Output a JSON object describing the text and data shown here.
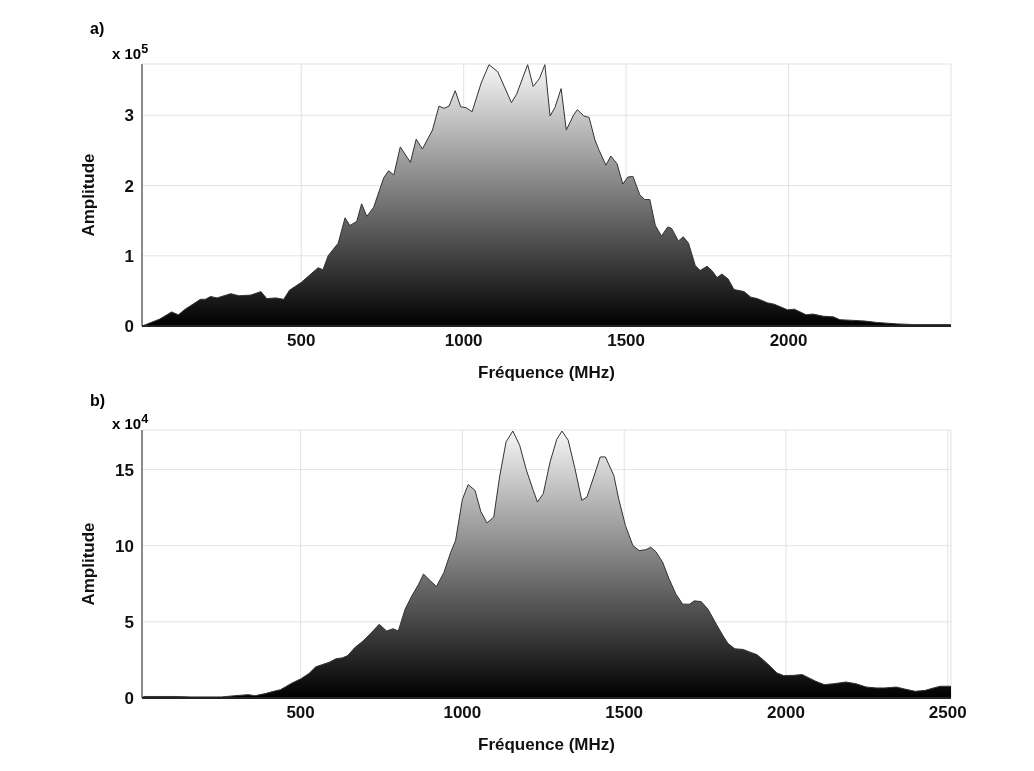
{
  "chart_data": [
    {
      "type": "area",
      "title": "a)",
      "xlabel": "Fréquence (MHz)",
      "ylabel": "Amplitude",
      "annotations": [
        "x 10$^{5}$"
      ],
      "grid": true,
      "color": "#000000",
      "xlim": [
        10,
        2500
      ],
      "xticks": [
        500,
        1000,
        1500,
        2000
      ],
      "ylim": [
        0,
        3.73
      ],
      "yticks": [
        0,
        1,
        2,
        3
      ],
      "x": [
        11,
        65,
        101,
        122,
        143,
        190,
        205,
        221,
        241,
        283,
        309,
        345,
        376,
        394,
        422,
        446,
        464,
        500,
        552,
        567,
        583,
        614,
        635,
        650,
        671,
        686,
        702,
        723,
        754,
        769,
        785,
        805,
        836,
        854,
        873,
        904,
        924,
        940,
        955,
        974,
        991,
        1007,
        1026,
        1054,
        1078,
        1105,
        1147,
        1163,
        1197,
        1214,
        1233,
        1250,
        1266,
        1281,
        1300,
        1316,
        1339,
        1350,
        1370,
        1386,
        1404,
        1417,
        1438,
        1453,
        1472,
        1490,
        1505,
        1521,
        1542,
        1557,
        1573,
        1590,
        1609,
        1628,
        1640,
        1661,
        1676,
        1692,
        1713,
        1728,
        1749,
        1764,
        1780,
        1795,
        1814,
        1832,
        1863,
        1884,
        1904,
        1935,
        1956,
        1997,
        2018,
        2054,
        2075,
        2106,
        2138,
        2158,
        2200,
        2236,
        2273,
        2335,
        2387,
        2439,
        2499
      ],
      "values": [
        0,
        0.1,
        0.2,
        0.16,
        0.24,
        0.38,
        0.38,
        0.42,
        0.4,
        0.46,
        0.43,
        0.44,
        0.49,
        0.39,
        0.4,
        0.38,
        0.51,
        0.62,
        0.83,
        0.8,
        1.0,
        1.18,
        1.54,
        1.43,
        1.49,
        1.74,
        1.56,
        1.69,
        2.11,
        2.21,
        2.15,
        2.55,
        2.33,
        2.66,
        2.52,
        2.79,
        3.13,
        3.1,
        3.13,
        3.35,
        3.12,
        3.11,
        3.05,
        3.46,
        3.72,
        3.62,
        3.18,
        3.3,
        3.72,
        3.41,
        3.52,
        3.72,
        2.99,
        3.11,
        3.38,
        2.79,
        3.01,
        3.08,
        2.99,
        2.97,
        2.65,
        2.5,
        2.29,
        2.42,
        2.31,
        2.02,
        2.12,
        2.13,
        1.87,
        1.8,
        1.8,
        1.43,
        1.28,
        1.41,
        1.39,
        1.21,
        1.27,
        1.18,
        0.86,
        0.79,
        0.85,
        0.79,
        0.69,
        0.74,
        0.67,
        0.52,
        0.49,
        0.41,
        0.39,
        0.33,
        0.31,
        0.23,
        0.24,
        0.16,
        0.17,
        0.14,
        0.13,
        0.09,
        0.08,
        0.07,
        0.05,
        0.03,
        0.02,
        0.02,
        0.02
      ]
    },
    {
      "type": "area",
      "title": "b)",
      "xlabel": "Fréquence (MHz)",
      "ylabel": "Amplitude",
      "annotations": [
        "x 10$^{4}$"
      ],
      "grid": true,
      "color": "#000000",
      "xlim": [
        10,
        2510
      ],
      "xticks": [
        500,
        1000,
        1500,
        2000,
        2500
      ],
      "ylim": [
        0,
        17.6
      ],
      "yticks": [
        0,
        5,
        10,
        15
      ],
      "x": [
        14,
        109,
        161,
        255,
        297,
        339,
        359,
        391,
        417,
        438,
        453,
        474,
        500,
        526,
        547,
        568,
        589,
        609,
        630,
        646,
        667,
        693,
        714,
        743,
        766,
        786,
        802,
        823,
        844,
        865,
        880,
        901,
        920,
        943,
        964,
        979,
        1000,
        1018,
        1039,
        1057,
        1076,
        1097,
        1115,
        1135,
        1156,
        1177,
        1198,
        1219,
        1232,
        1250,
        1271,
        1292,
        1308,
        1327,
        1348,
        1369,
        1385,
        1411,
        1426,
        1442,
        1468,
        1483,
        1504,
        1527,
        1546,
        1567,
        1582,
        1598,
        1619,
        1639,
        1660,
        1681,
        1702,
        1717,
        1738,
        1759,
        1785,
        1806,
        1821,
        1842,
        1868,
        1889,
        1910,
        1931,
        1951,
        1972,
        1993,
        2024,
        2050,
        2071,
        2092,
        2118,
        2149,
        2185,
        2216,
        2248,
        2279,
        2305,
        2341,
        2367,
        2399,
        2430,
        2456,
        2477,
        2510
      ],
      "values": [
        0.1,
        0.1,
        0.07,
        0.07,
        0.15,
        0.22,
        0.15,
        0.29,
        0.44,
        0.55,
        0.73,
        0.99,
        1.25,
        1.61,
        2.05,
        2.2,
        2.35,
        2.57,
        2.64,
        2.79,
        3.3,
        3.74,
        4.18,
        4.84,
        4.4,
        4.55,
        4.4,
        5.83,
        6.71,
        7.48,
        8.14,
        7.7,
        7.32,
        8.25,
        9.57,
        10.34,
        13.04,
        14.01,
        13.64,
        12.25,
        11.5,
        11.88,
        14.52,
        16.82,
        17.53,
        16.6,
        14.96,
        13.64,
        12.87,
        13.42,
        15.5,
        17.0,
        17.53,
        16.93,
        15.06,
        12.98,
        13.2,
        14.84,
        15.83,
        15.83,
        14.62,
        13.08,
        11.32,
        10.01,
        9.68,
        9.74,
        9.9,
        9.61,
        8.91,
        7.81,
        6.82,
        6.16,
        6.16,
        6.38,
        6.33,
        5.83,
        4.84,
        4.07,
        3.58,
        3.23,
        3.19,
        3.01,
        2.85,
        2.48,
        2.09,
        1.65,
        1.47,
        1.49,
        1.54,
        1.32,
        1.1,
        0.88,
        0.94,
        1.05,
        0.94,
        0.72,
        0.66,
        0.66,
        0.72,
        0.59,
        0.44,
        0.5,
        0.66,
        0.77,
        0.77
      ]
    }
  ]
}
